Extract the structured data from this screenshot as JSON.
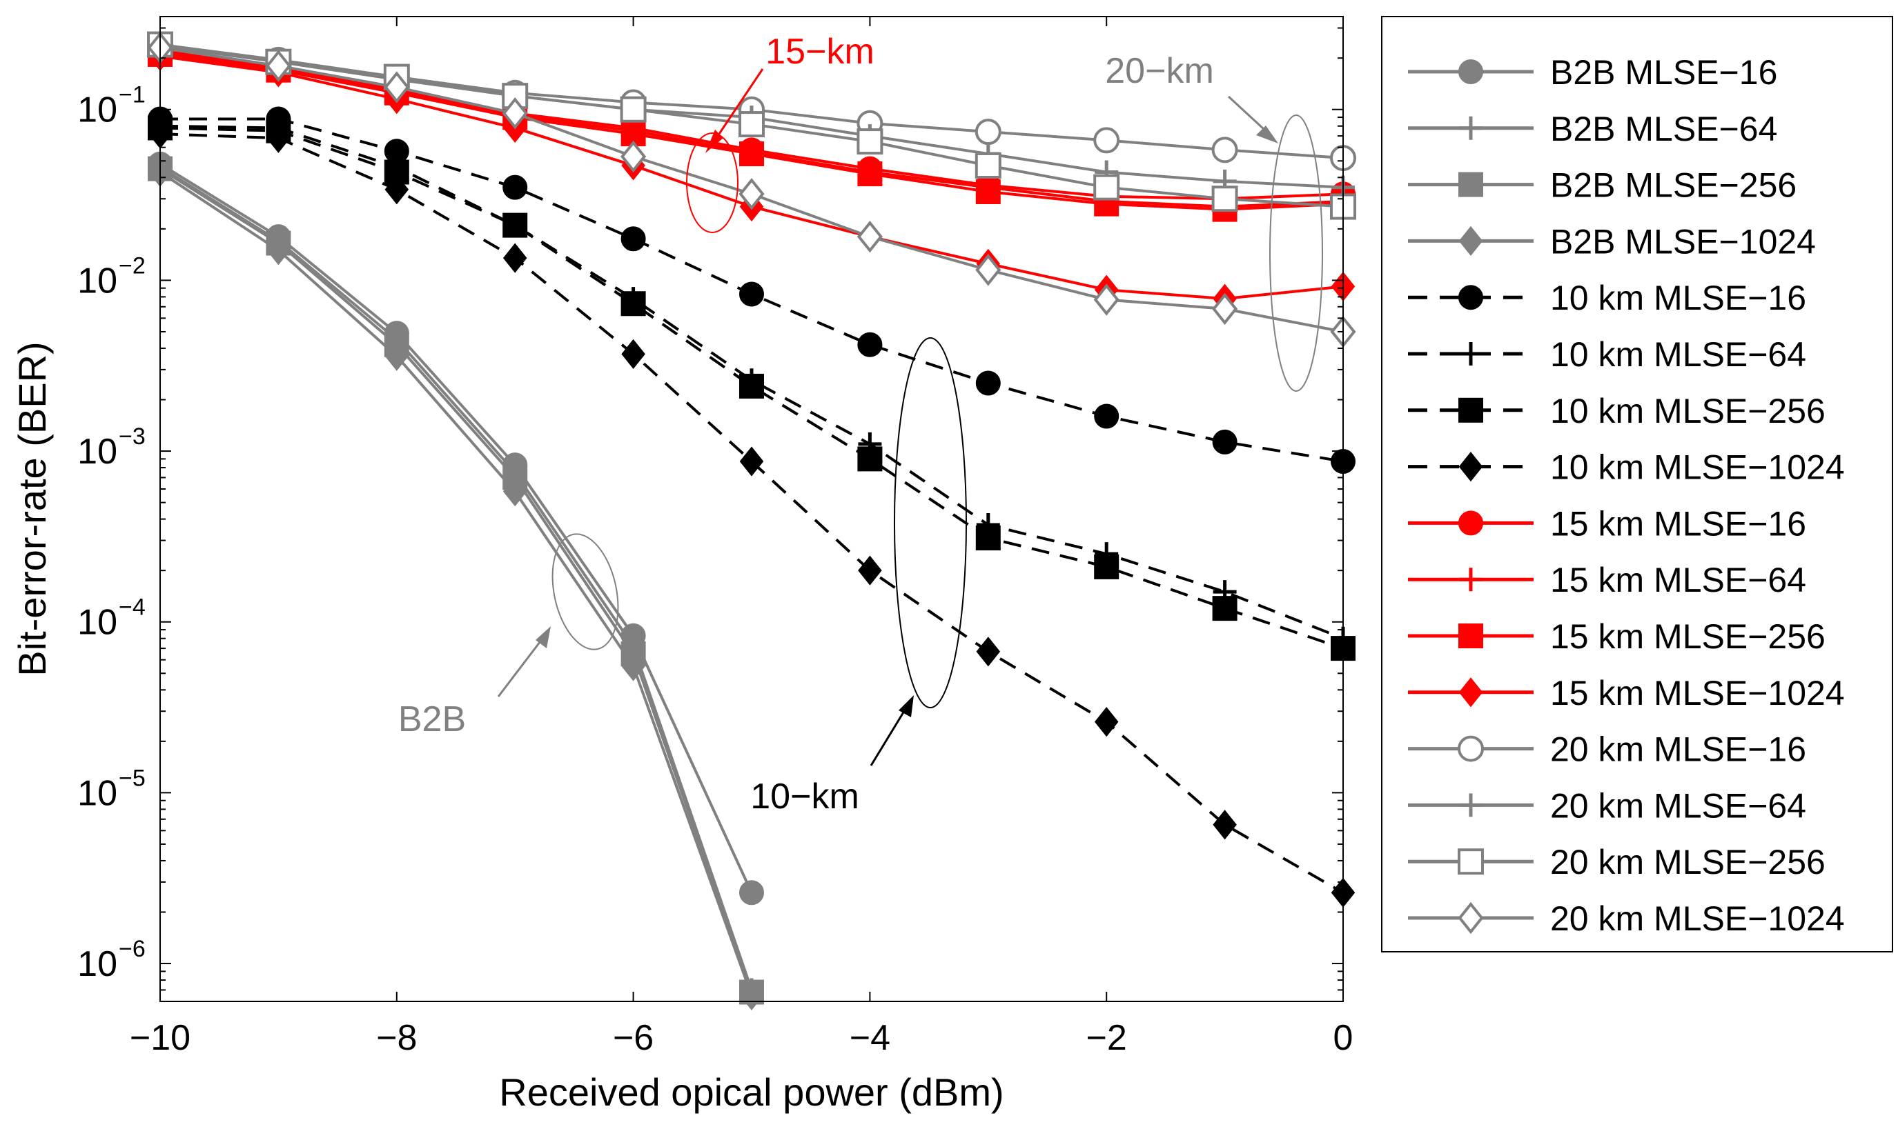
{
  "chart_data": {
    "type": "line",
    "title": "",
    "xlabel": "Received opical power (dBm)",
    "ylabel": "Bit-error-rate (BER)",
    "xlim": [
      -10,
      0
    ],
    "ylim": [
      6e-07,
      0.35
    ],
    "yscale": "log",
    "x_ticks": [
      -10,
      -8,
      -6,
      -4,
      -2,
      0
    ],
    "x_tick_labels": [
      "−10",
      "−8",
      "−6",
      "−4",
      "−2",
      "0"
    ],
    "y_ticks": [
      {
        "value": 1e-06,
        "exp": "−6"
      },
      {
        "value": 1e-05,
        "exp": "−5"
      },
      {
        "value": 0.0001,
        "exp": "−4"
      },
      {
        "value": 0.001,
        "exp": "−3"
      },
      {
        "value": 0.01,
        "exp": "−2"
      },
      {
        "value": 0.1,
        "exp": "−1"
      }
    ],
    "y_tick_base": "10",
    "grid": false,
    "legend_position": "outside-right",
    "series": [
      {
        "name": "B2B MLSE−16",
        "color": "#808080",
        "dash": "solid",
        "marker": "circle",
        "fill": "filled",
        "x": [
          -10,
          -9,
          -8,
          -7,
          -6,
          -5
        ],
        "y": [
          0.048,
          0.018,
          0.0049,
          0.00083,
          8.3e-05,
          2.6e-06
        ]
      },
      {
        "name": "B2B MLSE−64",
        "color": "#808080",
        "dash": "solid",
        "marker": "plus",
        "fill": "filled",
        "x": [
          -10,
          -9,
          -8,
          -7,
          -6,
          -5
        ],
        "y": [
          0.046,
          0.017,
          0.0045,
          0.00075,
          7.2e-05,
          7e-07
        ]
      },
      {
        "name": "B2B MLSE−256",
        "color": "#808080",
        "dash": "solid",
        "marker": "square",
        "fill": "filled",
        "x": [
          -10,
          -9,
          -8,
          -7,
          -6,
          -5
        ],
        "y": [
          0.045,
          0.0165,
          0.0042,
          0.0007,
          6.5e-05,
          6.8e-07
        ]
      },
      {
        "name": "B2B MLSE−1024",
        "color": "#808080",
        "dash": "solid",
        "marker": "diamond",
        "fill": "filled",
        "x": [
          -10,
          -9,
          -8,
          -7,
          -6,
          -5
        ],
        "y": [
          0.043,
          0.015,
          0.0036,
          0.00058,
          5.5e-05,
          6.5e-07
        ]
      },
      {
        "name": "10 km MLSE−16",
        "color": "#000000",
        "dash": "dashed",
        "marker": "circle",
        "fill": "filled",
        "x": [
          -10,
          -9,
          -8,
          -7,
          -6,
          -5,
          -4,
          -3,
          -2,
          -1,
          0
        ],
        "y": [
          0.088,
          0.088,
          0.057,
          0.035,
          0.0175,
          0.0083,
          0.0042,
          0.0025,
          0.0016,
          0.00113,
          0.00087
        ]
      },
      {
        "name": "10 km MLSE−64",
        "color": "#000000",
        "dash": "dashed",
        "marker": "plus",
        "fill": "filled",
        "x": [
          -10,
          -9,
          -8,
          -7,
          -6,
          -5,
          -4,
          -3,
          -2,
          -1,
          0
        ],
        "y": [
          0.08,
          0.078,
          0.046,
          0.021,
          0.0078,
          0.0026,
          0.0011,
          0.00037,
          0.00025,
          0.00015,
          8e-05
        ]
      },
      {
        "name": "10 km MLSE−256",
        "color": "#000000",
        "dash": "dashed",
        "marker": "square",
        "fill": "filled",
        "x": [
          -10,
          -9,
          -8,
          -7,
          -6,
          -5,
          -4,
          -3,
          -2,
          -1,
          0
        ],
        "y": [
          0.078,
          0.075,
          0.043,
          0.021,
          0.0073,
          0.0024,
          0.0009,
          0.00031,
          0.00021,
          0.00012,
          7e-05
        ]
      },
      {
        "name": "10 km MLSE−1024",
        "color": "#000000",
        "dash": "dashed",
        "marker": "diamond",
        "fill": "filled",
        "x": [
          -10,
          -9,
          -8,
          -7,
          -6,
          -5,
          -4,
          -3,
          -2,
          -1,
          0
        ],
        "y": [
          0.072,
          0.068,
          0.034,
          0.0135,
          0.0037,
          0.00087,
          0.0002,
          6.7e-05,
          2.6e-05,
          6.5e-06,
          2.6e-06
        ]
      },
      {
        "name": "15 km MLSE−16",
        "color": "#ff0000",
        "dash": "solid",
        "marker": "circle",
        "fill": "filled",
        "x": [
          -10,
          -9,
          -8,
          -7,
          -6,
          -5,
          -4,
          -3,
          -2,
          -1,
          0
        ],
        "y": [
          0.22,
          0.18,
          0.13,
          0.095,
          0.078,
          0.058,
          0.045,
          0.036,
          0.031,
          0.03,
          0.032
        ]
      },
      {
        "name": "15 km MLSE−64",
        "color": "#ff0000",
        "dash": "solid",
        "marker": "plus",
        "fill": "filled",
        "x": [
          -10,
          -9,
          -8,
          -7,
          -6,
          -5,
          -4,
          -3,
          -2,
          -1,
          0
        ],
        "y": [
          0.215,
          0.175,
          0.128,
          0.092,
          0.075,
          0.056,
          0.043,
          0.035,
          0.029,
          0.027,
          0.029
        ]
      },
      {
        "name": "15 km MLSE−256",
        "color": "#ff0000",
        "dash": "solid",
        "marker": "square",
        "fill": "filled",
        "x": [
          -10,
          -9,
          -8,
          -7,
          -6,
          -5,
          -4,
          -3,
          -2,
          -1,
          0
        ],
        "y": [
          0.21,
          0.17,
          0.125,
          0.09,
          0.072,
          0.055,
          0.042,
          0.033,
          0.028,
          0.026,
          0.028
        ]
      },
      {
        "name": "15 km MLSE−1024",
        "color": "#ff0000",
        "dash": "solid",
        "marker": "diamond",
        "fill": "filled",
        "x": [
          -10,
          -9,
          -8,
          -7,
          -6,
          -5,
          -4,
          -3,
          -2,
          -1,
          0
        ],
        "y": [
          0.205,
          0.165,
          0.115,
          0.078,
          0.047,
          0.027,
          0.018,
          0.0125,
          0.0088,
          0.0078,
          0.0092
        ]
      },
      {
        "name": "20 km MLSE−16",
        "color": "#808080",
        "dash": "solid",
        "marker": "circle",
        "fill": "open",
        "x": [
          -10,
          -9,
          -8,
          -7,
          -6,
          -5,
          -4,
          -3,
          -2,
          -1,
          0
        ],
        "y": [
          0.24,
          0.195,
          0.155,
          0.125,
          0.11,
          0.1,
          0.083,
          0.074,
          0.066,
          0.058,
          0.052
        ]
      },
      {
        "name": "20 km MLSE−64",
        "color": "#808080",
        "dash": "solid",
        "marker": "plus",
        "fill": "open",
        "x": [
          -10,
          -9,
          -8,
          -7,
          -6,
          -5,
          -4,
          -3,
          -2,
          -1,
          0
        ],
        "y": [
          0.235,
          0.19,
          0.15,
          0.12,
          0.1,
          0.09,
          0.07,
          0.055,
          0.043,
          0.038,
          0.035
        ]
      },
      {
        "name": "20 km MLSE−256",
        "color": "#808080",
        "dash": "solid",
        "marker": "square",
        "fill": "open",
        "x": [
          -10,
          -9,
          -8,
          -7,
          -6,
          -5,
          -4,
          -3,
          -2,
          -1,
          0
        ],
        "y": [
          0.24,
          0.19,
          0.155,
          0.12,
          0.1,
          0.082,
          0.065,
          0.047,
          0.035,
          0.03,
          0.027
        ]
      },
      {
        "name": "20 km MLSE−1024",
        "color": "#808080",
        "dash": "solid",
        "marker": "diamond",
        "fill": "open",
        "x": [
          -10,
          -9,
          -8,
          -7,
          -6,
          -5,
          -4,
          -3,
          -2,
          -1,
          0
        ],
        "y": [
          0.23,
          0.18,
          0.135,
          0.095,
          0.053,
          0.032,
          0.018,
          0.0115,
          0.0077,
          0.0068,
          0.005
        ]
      }
    ],
    "annotations": [
      {
        "text": "15−km",
        "color": "#ff0000"
      },
      {
        "text": "20−km",
        "color": "#808080"
      },
      {
        "text": "B2B",
        "color": "#808080"
      },
      {
        "text": "10−km",
        "color": "#000000"
      }
    ]
  }
}
